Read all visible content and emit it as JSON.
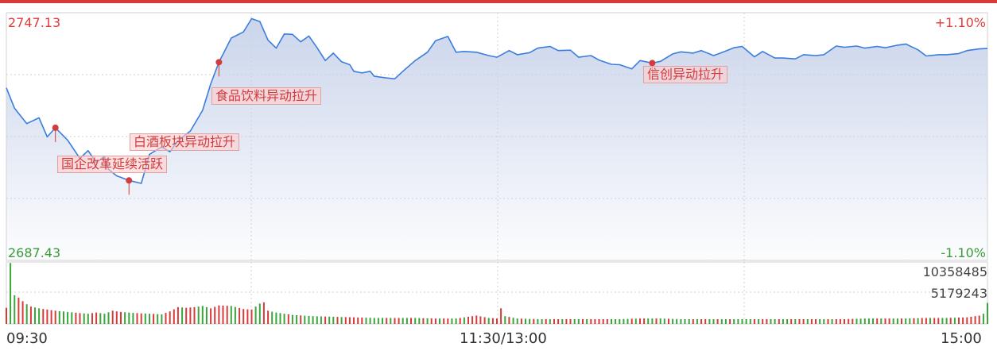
{
  "chart_data": {
    "type": "line",
    "price": {
      "max_label": "2747.13",
      "min_label": "2687.43",
      "max_pct_label": "+1.10%",
      "min_pct_label": "-1.10%",
      "ylim": [
        2687.43,
        2747.13
      ],
      "line_color": "#3b7ddd",
      "fill_color": "#c8d3ea",
      "x": [
        0,
        2,
        5,
        8,
        10,
        12,
        15,
        18,
        20,
        22,
        24,
        25,
        27,
        30,
        33,
        35,
        38,
        40,
        42,
        45,
        48,
        50,
        52,
        55,
        58,
        60,
        62,
        64,
        66,
        68,
        70,
        72,
        74,
        76,
        78,
        80,
        82,
        84,
        85,
        87,
        89,
        90,
        93,
        95,
        97,
        100,
        103,
        105,
        108,
        110,
        112,
        115,
        118,
        120,
        123,
        125,
        128,
        130,
        133,
        135,
        138,
        140,
        143,
        145,
        148,
        150,
        153,
        155,
        158,
        160,
        163,
        165,
        168,
        170,
        173,
        175,
        178,
        180,
        183,
        185,
        188,
        190,
        193,
        195,
        198,
        200,
        203,
        205,
        208,
        210,
        213,
        215,
        218,
        220,
        223,
        225,
        228,
        230,
        233,
        235,
        238,
        240
      ],
      "y": [
        2729.0,
        2724.1,
        2720.4,
        2721.8,
        2717.2,
        2719.4,
        2716.4,
        2712.0,
        2713.9,
        2711.0,
        2712.5,
        2709.4,
        2707.8,
        2706.7,
        2706.0,
        2713.0,
        2714.8,
        2713.6,
        2716.3,
        2718.6,
        2723.6,
        2730.0,
        2735.2,
        2741.0,
        2742.5,
        2745.7,
        2745.0,
        2740.5,
        2738.6,
        2742.0,
        2741.9,
        2740.1,
        2741.5,
        2738.7,
        2735.6,
        2737.4,
        2735.3,
        2734.6,
        2733.0,
        2732.6,
        2733.0,
        2731.8,
        2731.4,
        2731.2,
        2733.0,
        2735.6,
        2737.6,
        2740.4,
        2741.4,
        2737.6,
        2737.8,
        2737.6,
        2736.8,
        2736.4,
        2738.0,
        2737.0,
        2737.5,
        2738.6,
        2739.0,
        2738.0,
        2738.1,
        2736.4,
        2736.8,
        2735.7,
        2734.7,
        2734.6,
        2733.6,
        2735.6,
        2735.0,
        2735.4,
        2737.2,
        2737.7,
        2737.4,
        2738.0,
        2736.8,
        2737.5,
        2738.7,
        2739.0,
        2736.5,
        2737.8,
        2736.2,
        2736.2,
        2736.0,
        2737.0,
        2736.8,
        2737.0,
        2739.1,
        2738.8,
        2739.1,
        2738.6,
        2739.0,
        2738.7,
        2739.3,
        2739.6,
        2738.2,
        2736.7,
        2737.0,
        2737.0,
        2737.3,
        2738.0,
        2738.4,
        2738.5
      ]
    },
    "annotations": [
      {
        "text": "国企改革延续活跃",
        "x": 12
      },
      {
        "text": "白酒板块异动拉升",
        "x": 30
      },
      {
        "text": "食品饮料异动拉升",
        "x": 52
      },
      {
        "text": "信创异动拉升",
        "x": 158
      }
    ],
    "volume": {
      "max_label": "10358485",
      "mid_label": "5179243",
      "ylim": [
        0,
        10358485
      ],
      "up_color": "#d83a3a",
      "down_color": "#3aa53a",
      "x": [
        0,
        1,
        2,
        3,
        4,
        5,
        6,
        8,
        10,
        12,
        15,
        18,
        20,
        22,
        24,
        26,
        28,
        30,
        32,
        35,
        38,
        40,
        42,
        44,
        46,
        48,
        50,
        52,
        55,
        58,
        60,
        62,
        63,
        64,
        66,
        70,
        75,
        80,
        85,
        90,
        95,
        100,
        105,
        110,
        115,
        118,
        120,
        121,
        122,
        125,
        130,
        135,
        140,
        145,
        150,
        155,
        160,
        165,
        170,
        175,
        180,
        185,
        190,
        195,
        200,
        205,
        210,
        215,
        220,
        225,
        230,
        235,
        238,
        239,
        240
      ],
      "v": [
        2700000,
        10200000,
        4800000,
        4400000,
        3800000,
        3300000,
        2900000,
        2600000,
        2400000,
        2200000,
        2000000,
        1800000,
        1700000,
        1900000,
        1700000,
        2200000,
        2000000,
        1900000,
        1800000,
        1700000,
        1600000,
        2100000,
        2800000,
        2700000,
        2800000,
        3000000,
        2600000,
        3100000,
        3000000,
        2500000,
        2400000,
        3400000,
        3600000,
        2200000,
        1900000,
        1500000,
        1300000,
        1200000,
        1100000,
        1000000,
        1000000,
        1000000,
        900000,
        900000,
        1400000,
        1000000,
        900000,
        2600000,
        1300000,
        900000,
        800000,
        800000,
        800000,
        800000,
        800000,
        900000,
        900000,
        800000,
        800000,
        800000,
        800000,
        800000,
        800000,
        800000,
        800000,
        800000,
        900000,
        900000,
        900000,
        1000000,
        1000000,
        1100000,
        1400000,
        1700000,
        3500000
      ],
      "dir": [
        "up",
        "down",
        "down",
        "up",
        "up",
        "down",
        "up",
        "down",
        "up",
        "up",
        "down",
        "up",
        "down",
        "up",
        "down",
        "up",
        "up",
        "down",
        "up",
        "down",
        "down",
        "up",
        "up",
        "up",
        "up",
        "down",
        "up",
        "up",
        "down",
        "up",
        "up",
        "down",
        "up",
        "up",
        "down",
        "down",
        "down",
        "down",
        "up",
        "down",
        "up",
        "down",
        "up",
        "down",
        "up",
        "down",
        "up",
        "up",
        "down",
        "down",
        "down",
        "up",
        "down",
        "up",
        "down",
        "up",
        "down",
        "down",
        "up",
        "down",
        "down",
        "up",
        "down",
        "up",
        "down",
        "up",
        "down",
        "up",
        "down",
        "up",
        "down",
        "up",
        "up",
        "down",
        "down"
      ]
    },
    "x_ticks": [
      "09:30",
      "11:30/13:00",
      "15:00"
    ]
  }
}
